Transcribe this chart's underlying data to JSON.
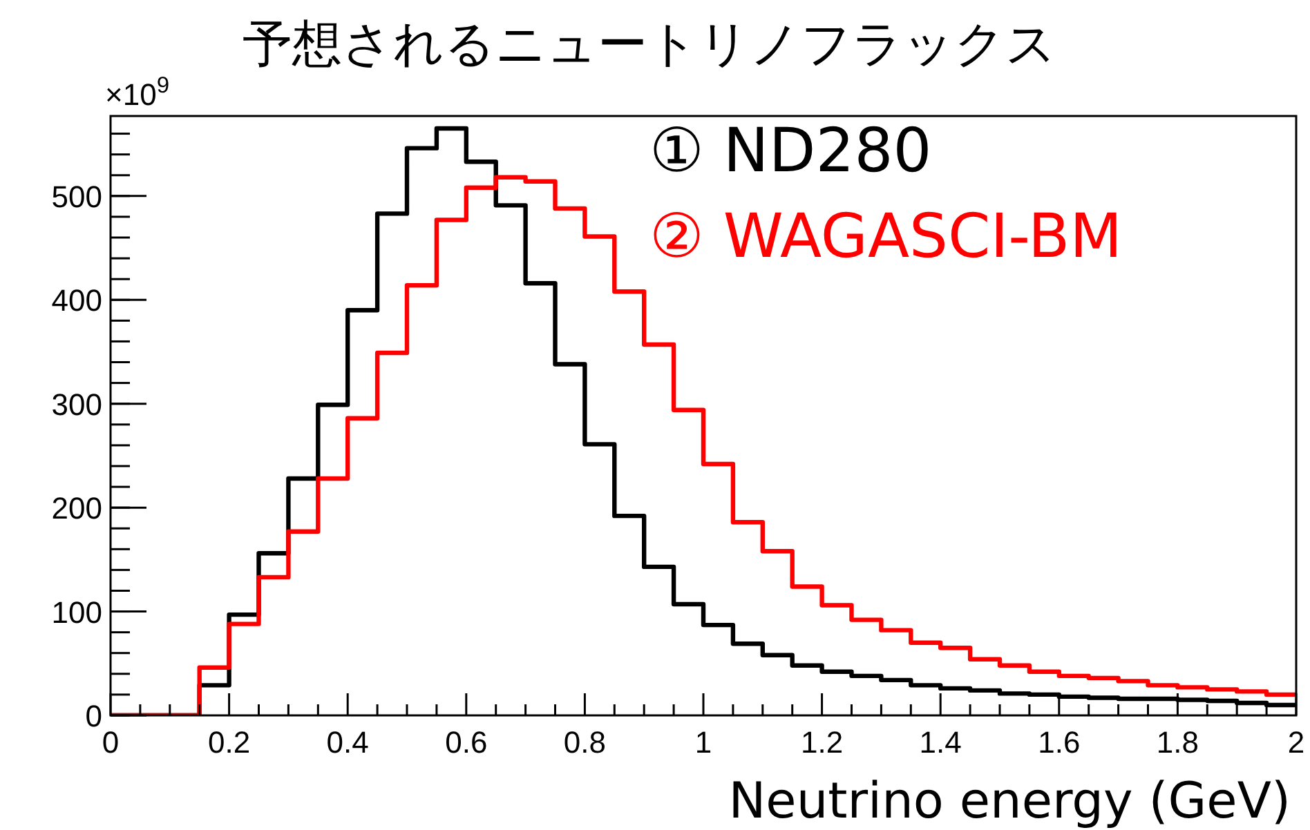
{
  "chart_data": {
    "type": "histogram",
    "title": "予想されるニュートリノフラックス",
    "xlabel": "Neutrino energy (GeV)",
    "annotations": [
      "×10$^{9}$"
    ],
    "bins": [
      0,
      0.05,
      0.1,
      0.15,
      0.2,
      0.25,
      0.3,
      0.35,
      0.4,
      0.45,
      0.5,
      0.55,
      0.6,
      0.65,
      0.7,
      0.75,
      0.8,
      0.85,
      0.9,
      0.95,
      1,
      1.05,
      1.1,
      1.15,
      1.2,
      1.25,
      1.3,
      1.35,
      1.4,
      1.45,
      1.5,
      1.55,
      1.6,
      1.65,
      1.7,
      1.75,
      1.8,
      1.85,
      1.9,
      1.95,
      2
    ],
    "series": [
      {
        "name": "① ND280",
        "color": "#000000",
        "values": [
          0,
          0,
          0,
          29,
          97,
          156,
          228,
          299,
          390,
          483,
          546,
          565,
          533,
          491,
          416,
          338,
          261,
          192,
          143,
          107,
          87,
          69,
          58,
          48,
          42,
          38,
          34,
          29,
          26,
          24,
          21,
          20,
          18,
          17,
          16,
          16,
          15,
          14,
          12,
          10
        ]
      },
      {
        "name": "② WAGASCI-BM",
        "color": "#ff0000",
        "values": [
          0,
          0,
          0,
          46,
          88,
          133,
          177,
          228,
          286,
          349,
          414,
          477,
          508,
          518,
          514,
          488,
          461,
          408,
          357,
          294,
          242,
          186,
          158,
          124,
          106,
          92,
          82,
          70,
          65,
          54,
          48,
          42,
          38,
          36,
          33,
          29,
          27,
          25,
          23,
          20
        ]
      }
    ],
    "xlim": [
      0,
      2
    ],
    "ylim": [
      0,
      577
    ],
    "xticks": [
      0,
      0.2,
      0.4,
      0.6,
      0.8,
      1,
      1.2,
      1.4,
      1.6,
      1.8,
      2
    ],
    "yticks": [
      0,
      100,
      200,
      300,
      400,
      500
    ],
    "grid": false,
    "legend": "top right"
  }
}
